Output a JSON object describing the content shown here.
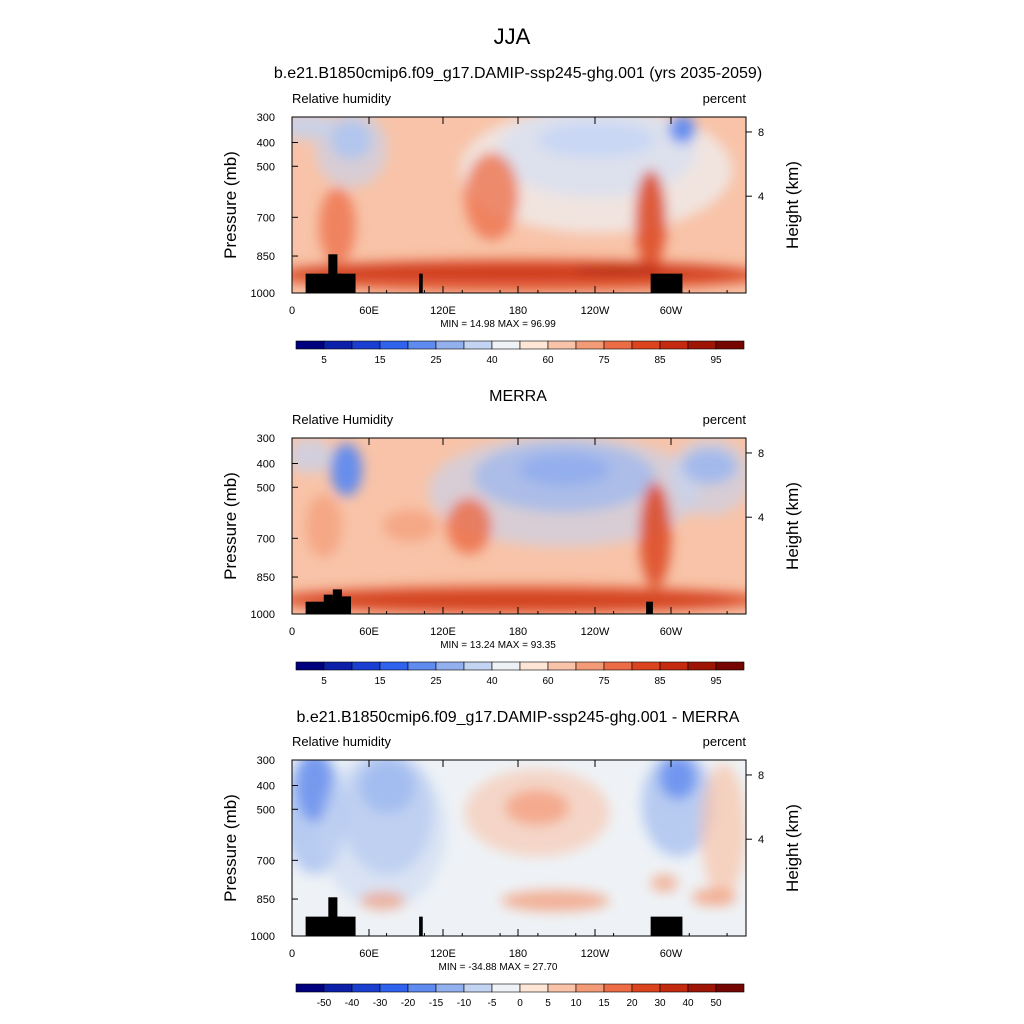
{
  "figure": {
    "title": "JJA"
  },
  "chart_data": [
    {
      "type": "heatmap",
      "title": "b.e21.B1850cmip6.f09_g17.DAMIP-ssp245-ghg.001 (yrs 2035-2059)",
      "left_label": "Relative humidity",
      "right_label": "percent",
      "ylabel": "Pressure (mb)",
      "ylabel_right": "Height (km)",
      "x_ticks": [
        "0",
        "60E",
        "120E",
        "180",
        "120W",
        "60W"
      ],
      "y_ticks": [
        "300",
        "400",
        "500",
        "700",
        "850",
        "1000"
      ],
      "y_ticks_right": [
        "8",
        "4"
      ],
      "stats": "MIN =  14.98  MAX =  96.99",
      "colorbar_labels": [
        "5",
        "15",
        "25",
        "40",
        "60",
        "75",
        "85",
        "95"
      ],
      "colorbar_colors": [
        "#00007f",
        "#0c1fa8",
        "#1a3fd0",
        "#2f63ee",
        "#5f8aef",
        "#93b0ee",
        "#c3d4f2",
        "#eef2f6",
        "#fde6d5",
        "#f8c3a8",
        "#f39b77",
        "#ec6c45",
        "#dc4420",
        "#c42a10",
        "#9e1506",
        "#740500"
      ],
      "min": 14.98,
      "max": 96.99
    },
    {
      "type": "heatmap",
      "title": "MERRA",
      "left_label": "Relative Humidity",
      "right_label": "percent",
      "ylabel": "Pressure (mb)",
      "ylabel_right": "Height (km)",
      "x_ticks": [
        "0",
        "60E",
        "120E",
        "180",
        "120W",
        "60W"
      ],
      "y_ticks": [
        "300",
        "400",
        "500",
        "700",
        "850",
        "1000"
      ],
      "y_ticks_right": [
        "8",
        "4"
      ],
      "stats": "MIN =  13.24  MAX =  93.35",
      "colorbar_labels": [
        "5",
        "15",
        "25",
        "40",
        "60",
        "75",
        "85",
        "95"
      ],
      "colorbar_colors": [
        "#00007f",
        "#0c1fa8",
        "#1a3fd0",
        "#2f63ee",
        "#5f8aef",
        "#93b0ee",
        "#c3d4f2",
        "#eef2f6",
        "#fde6d5",
        "#f8c3a8",
        "#f39b77",
        "#ec6c45",
        "#dc4420",
        "#c42a10",
        "#9e1506",
        "#740500"
      ],
      "min": 13.24,
      "max": 93.35
    },
    {
      "type": "heatmap",
      "title": "b.e21.B1850cmip6.f09_g17.DAMIP-ssp245-ghg.001 - MERRA",
      "left_label": "Relative humidity",
      "right_label": "percent",
      "ylabel": "Pressure (mb)",
      "ylabel_right": "Height (km)",
      "x_ticks": [
        "0",
        "60E",
        "120E",
        "180",
        "120W",
        "60W"
      ],
      "y_ticks": [
        "300",
        "400",
        "500",
        "700",
        "850",
        "1000"
      ],
      "y_ticks_right": [
        "8",
        "4"
      ],
      "stats": "MIN = -34.88  MAX =  27.70",
      "colorbar_labels": [
        "-50",
        "-40",
        "-30",
        "-20",
        "-15",
        "-10",
        "-5",
        "0",
        "5",
        "10",
        "15",
        "20",
        "30",
        "40",
        "50"
      ],
      "colorbar_colors": [
        "#00007f",
        "#0c1fa8",
        "#1a3fd0",
        "#2f63ee",
        "#5f8aef",
        "#93b0ee",
        "#c3d4f2",
        "#eef2f6",
        "#fde6d5",
        "#f8c3a8",
        "#f39b77",
        "#ec6c45",
        "#dc4420",
        "#c42a10",
        "#9e1506",
        "#740500"
      ],
      "min": -34.88,
      "max": 27.7
    }
  ]
}
